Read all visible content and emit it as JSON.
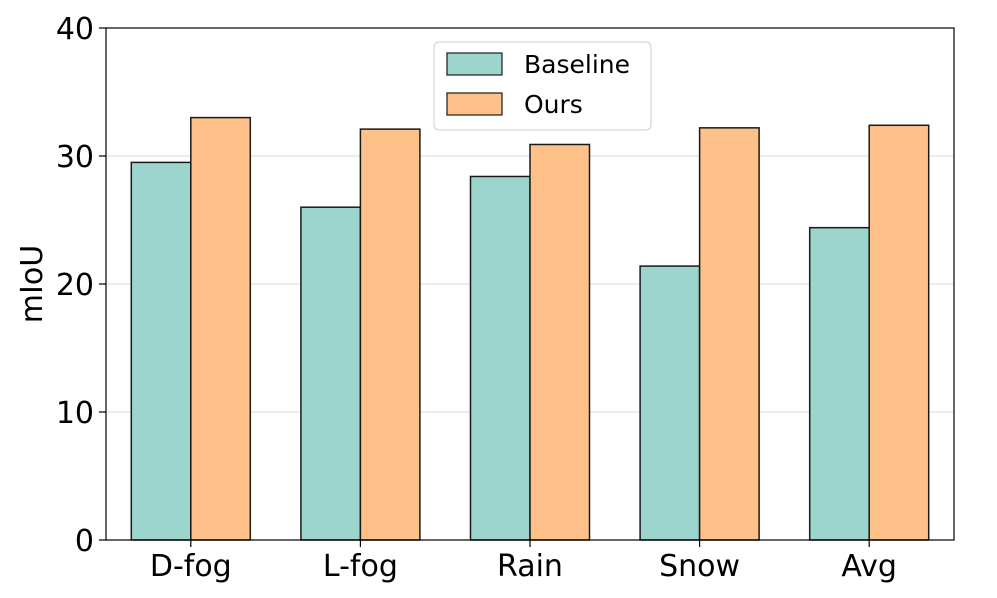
{
  "chart_data": {
    "type": "bar",
    "title": "",
    "xlabel": "",
    "ylabel": "mIoU",
    "ylim": [
      0,
      40
    ],
    "yticks": [
      "0",
      "10",
      "20",
      "30",
      "40"
    ],
    "categories": [
      "D-fog",
      "L-fog",
      "Rain",
      "Snow",
      "Avg"
    ],
    "series": [
      {
        "name": "Baseline",
        "color": "#9bd5cd",
        "values": [
          29.5,
          26.0,
          28.4,
          21.4,
          24.4
        ]
      },
      {
        "name": "Ours",
        "color": "#fec189",
        "values": [
          33.0,
          32.1,
          30.9,
          32.2,
          32.4
        ]
      }
    ],
    "grid": "y-major",
    "legend_position": "top-center"
  }
}
